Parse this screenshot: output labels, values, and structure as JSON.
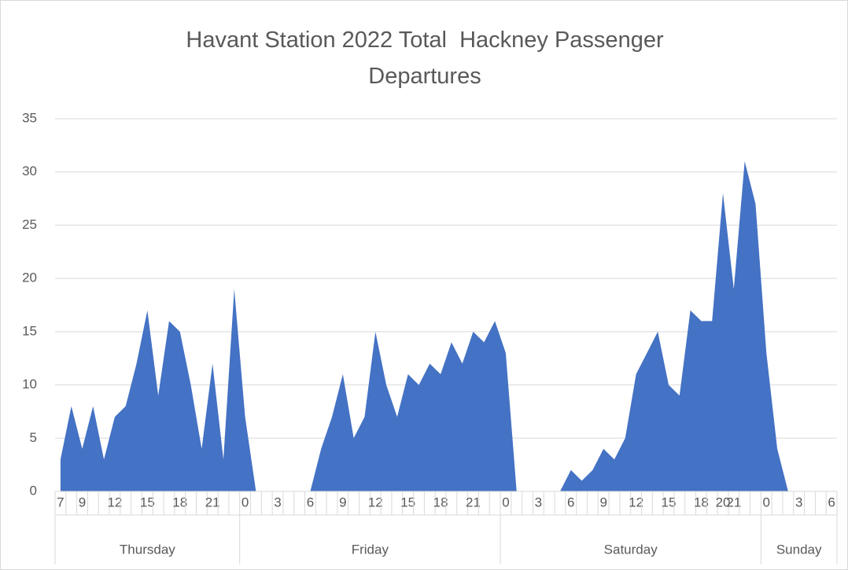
{
  "chart_data": {
    "type": "area",
    "title": "Havant Station 2022 Total  Hackney Passenger Departures",
    "groups": [
      {
        "label": "Thursday",
        "categories": [
          "7",
          null,
          "9",
          null,
          null,
          "12",
          null,
          null,
          "15",
          null,
          null,
          "18",
          null,
          null,
          "21",
          null,
          null
        ]
      },
      {
        "label": "Friday",
        "categories": [
          "0",
          null,
          null,
          "3",
          null,
          null,
          "6",
          null,
          null,
          "9",
          null,
          null,
          "12",
          null,
          null,
          "15",
          null,
          null,
          "18",
          null,
          null,
          "21",
          null,
          null
        ]
      },
      {
        "label": "Saturday",
        "categories": [
          "0",
          null,
          null,
          "3",
          null,
          null,
          "6",
          null,
          null,
          "9",
          null,
          null,
          "12",
          null,
          null,
          "15",
          null,
          null,
          "18",
          null,
          "20",
          "21",
          null,
          null
        ]
      },
      {
        "label": "Sunday",
        "categories": [
          "0",
          null,
          null,
          "3",
          null,
          null,
          "6"
        ]
      }
    ],
    "series": [
      {
        "name": "Departures",
        "color": "#4472c4",
        "values": [
          3,
          8,
          4,
          8,
          3,
          7,
          8,
          12,
          17,
          9,
          16,
          15,
          10,
          4,
          12,
          3,
          19,
          7,
          0,
          0,
          0,
          0,
          0,
          0,
          4,
          7,
          11,
          5,
          7,
          15,
          10,
          7,
          11,
          10,
          12,
          11,
          14,
          12,
          15,
          14,
          16,
          13,
          0,
          0,
          0,
          0,
          0,
          2,
          1,
          2,
          4,
          3,
          5,
          11,
          13,
          15,
          10,
          9,
          17,
          16,
          16,
          28,
          19,
          31,
          27,
          13,
          4,
          0,
          null,
          null,
          null,
          null
        ]
      }
    ],
    "ylim": [
      0,
      35
    ],
    "yticks": [
      0,
      5,
      10,
      15,
      20,
      25,
      30,
      35
    ],
    "grid": true
  }
}
